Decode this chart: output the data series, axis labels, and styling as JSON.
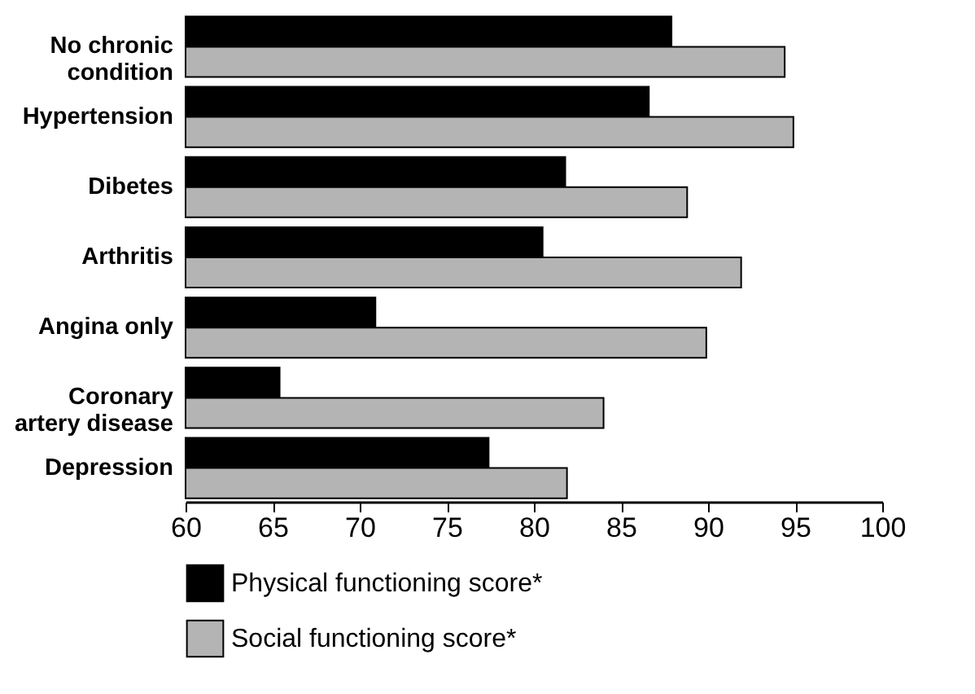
{
  "chart_data": {
    "type": "bar",
    "orientation": "horizontal",
    "categories": [
      "No chronic condition",
      "Hypertension",
      "Dibetes",
      "Arthritis",
      "Angina only",
      "Coronary artery disease",
      "Depression"
    ],
    "series": [
      {
        "name": "Physical functioning score*",
        "color": "#000000",
        "values": [
          87.9,
          86.6,
          81.8,
          80.5,
          70.9,
          65.4,
          77.4
        ]
      },
      {
        "name": "Social functioning score*",
        "color": "#b4b4b4",
        "values": [
          94.4,
          94.9,
          88.8,
          91.9,
          89.9,
          84.0,
          81.9
        ]
      }
    ],
    "xlim": [
      60,
      100
    ],
    "xticks": [
      60,
      65,
      70,
      75,
      80,
      85,
      90,
      95,
      100
    ],
    "grid": false,
    "legend": "bottom"
  }
}
